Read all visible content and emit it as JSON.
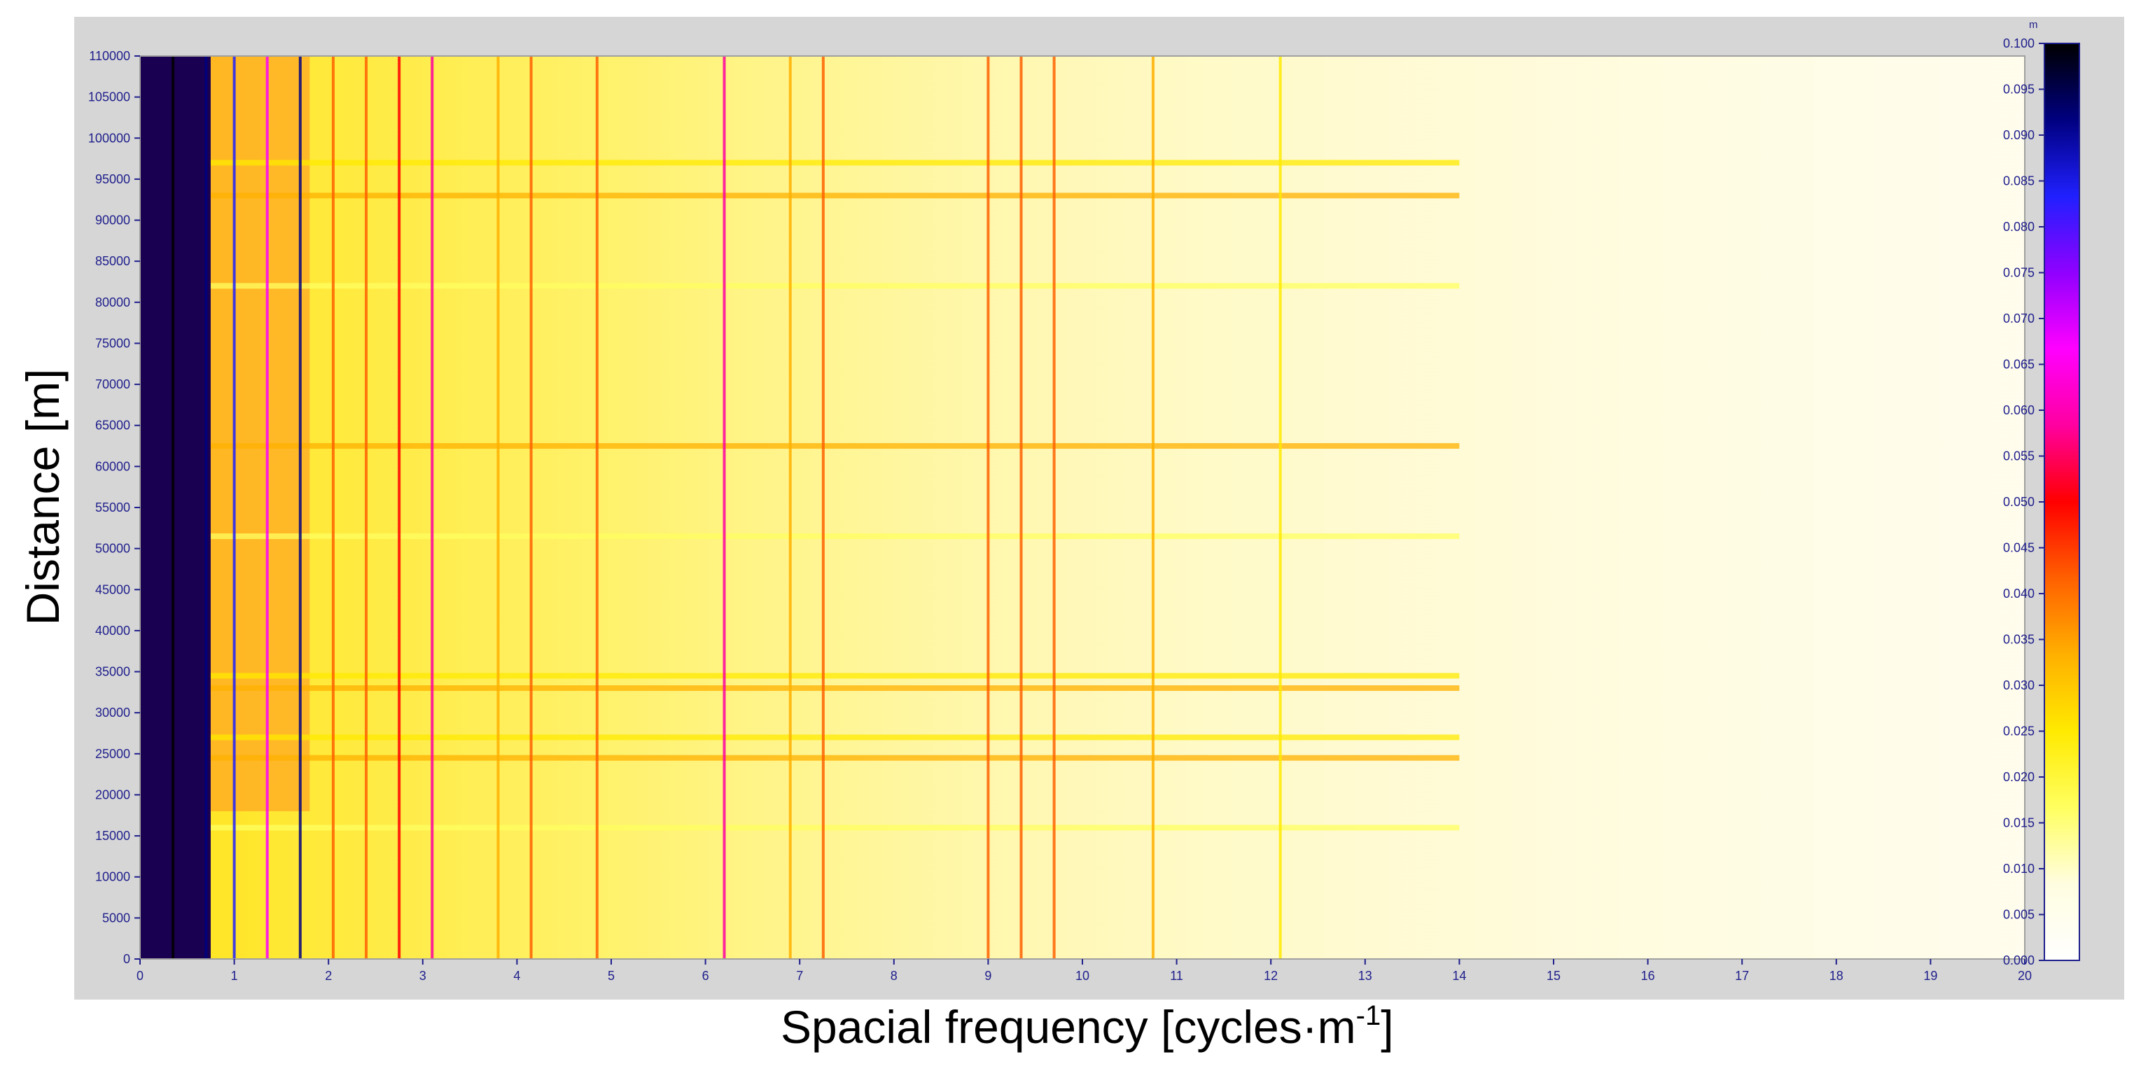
{
  "chart_data": {
    "type": "heatmap",
    "title": "",
    "xlabel": "Spacial frequency [cycles·m",
    "xlabel_sup": "-1",
    "xlabel_end": "]",
    "ylabel": "Distance [m]",
    "xlim": [
      0,
      20
    ],
    "ylim": [
      0,
      110000
    ],
    "x_ticks": [
      "0",
      "1",
      "2",
      "3",
      "4",
      "5",
      "6",
      "7",
      "8",
      "9",
      "10",
      "11",
      "12",
      "13",
      "14",
      "15",
      "16",
      "17",
      "18",
      "19",
      "20"
    ],
    "y_ticks": [
      "0",
      "5000",
      "10000",
      "15000",
      "20000",
      "25000",
      "30000",
      "35000",
      "40000",
      "45000",
      "50000",
      "55000",
      "60000",
      "65000",
      "70000",
      "75000",
      "80000",
      "85000",
      "90000",
      "95000",
      "100000",
      "105000",
      "110000"
    ],
    "colorbar": {
      "unit": "m",
      "range": [
        0,
        0.1
      ],
      "ticks": [
        "0.000",
        "0.005",
        "0.010",
        "0.015",
        "0.020",
        "0.025",
        "0.030",
        "0.035",
        "0.040",
        "0.045",
        "0.050",
        "0.055",
        "0.060",
        "0.065",
        "0.070",
        "0.075",
        "0.080",
        "0.085",
        "0.090",
        "0.095",
        "0.100"
      ],
      "colors": [
        "#ffffff",
        "#fffde0",
        "#ffff60",
        "#ffea00",
        "#ffb000",
        "#ff6000",
        "#ff0000",
        "#ff00a0",
        "#ff00ff",
        "#9000ff",
        "#2020ff",
        "#000080",
        "#000000"
      ]
    },
    "horizontal_bands": [
      {
        "distance": 93000,
        "level": 0.035
      },
      {
        "distance": 97000,
        "level": 0.025
      },
      {
        "distance": 62500,
        "level": 0.03
      },
      {
        "distance": 34500,
        "level": 0.028
      },
      {
        "distance": 33000,
        "level": 0.032
      },
      {
        "distance": 24500,
        "level": 0.035
      },
      {
        "distance": 27000,
        "level": 0.022
      },
      {
        "distance": 51500,
        "level": 0.02
      },
      {
        "distance": 82000,
        "level": 0.018
      },
      {
        "distance": 16000,
        "level": 0.016
      }
    ],
    "vertical_lines": [
      {
        "frequency": 0.35,
        "level": 0.1
      },
      {
        "frequency": 0.7,
        "level": 0.09
      },
      {
        "frequency": 1.0,
        "level": 0.08
      },
      {
        "frequency": 1.35,
        "level": 0.07
      },
      {
        "frequency": 1.7,
        "level": 0.09
      },
      {
        "frequency": 2.05,
        "level": 0.04
      },
      {
        "frequency": 2.4,
        "level": 0.045
      },
      {
        "frequency": 2.75,
        "level": 0.05
      },
      {
        "frequency": 3.1,
        "level": 0.06
      },
      {
        "frequency": 3.8,
        "level": 0.035
      },
      {
        "frequency": 4.15,
        "level": 0.045
      },
      {
        "frequency": 4.85,
        "level": 0.04
      },
      {
        "frequency": 6.2,
        "level": 0.055
      },
      {
        "frequency": 6.9,
        "level": 0.035
      },
      {
        "frequency": 7.25,
        "level": 0.04
      },
      {
        "frequency": 9.0,
        "level": 0.045
      },
      {
        "frequency": 9.35,
        "level": 0.04
      },
      {
        "frequency": 9.7,
        "level": 0.045
      },
      {
        "frequency": 10.75,
        "level": 0.035
      },
      {
        "frequency": 12.1,
        "level": 0.025
      }
    ]
  }
}
